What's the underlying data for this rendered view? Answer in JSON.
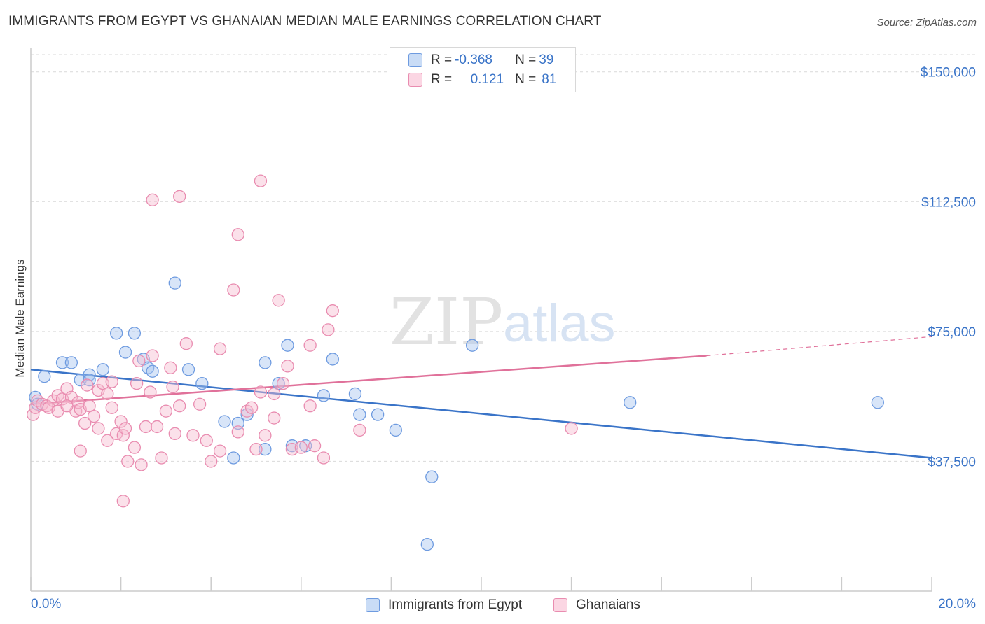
{
  "title": "IMMIGRANTS FROM EGYPT VS GHANAIAN MEDIAN MALE EARNINGS CORRELATION CHART",
  "source": "Source: ZipAtlas.com",
  "watermark": {
    "zip": "ZIP",
    "atlas": "atlas"
  },
  "colors": {
    "blue": "#3a74c8",
    "blue_fill": "#a9c6f0",
    "blue_stroke": "#6e9be0",
    "pink": "#e0719a",
    "pink_fill": "#f6bcd0",
    "pink_stroke": "#e98cb0",
    "axis_text": "#3a74c8",
    "grid": "#d9d9d9"
  },
  "legend": {
    "rows": [
      {
        "r_label": "R = ",
        "r_value": "-0.368",
        "n_label": "N = ",
        "n_value": "39"
      },
      {
        "r_label": "R = ",
        "r_value": "0.121",
        "n_label": "N = ",
        "n_value": "81"
      }
    ]
  },
  "bottom_legend": [
    "Immigrants from Egypt",
    "Ghanaians"
  ],
  "chart_data": {
    "type": "scatter",
    "title": "IMMIGRANTS FROM EGYPT VS GHANAIAN MEDIAN MALE EARNINGS CORRELATION CHART",
    "xlabel": "",
    "ylabel": "Median Male Earnings",
    "xlim": [
      0,
      20
    ],
    "ylim": [
      0,
      155000
    ],
    "x_tick_labels": [
      "0.0%",
      "20.0%"
    ],
    "y_ticks": [
      37500,
      75000,
      112500,
      150000
    ],
    "y_tick_labels": [
      "$37,500",
      "$75,000",
      "$112,500",
      "$150,000"
    ],
    "grid": true,
    "series": [
      {
        "name": "Immigrants from Egypt",
        "color": "#3a74c8",
        "r": -0.368,
        "n": 39,
        "trend": {
          "x": [
            0,
            20
          ],
          "y": [
            64000,
            38500
          ]
        },
        "points": [
          [
            0.1,
            56000
          ],
          [
            0.15,
            54000
          ],
          [
            0.3,
            62000
          ],
          [
            0.7,
            66000
          ],
          [
            0.9,
            66000
          ],
          [
            1.1,
            61000
          ],
          [
            1.3,
            62500
          ],
          [
            1.3,
            61000
          ],
          [
            1.6,
            64000
          ],
          [
            1.9,
            74500
          ],
          [
            2.3,
            74500
          ],
          [
            2.1,
            69000
          ],
          [
            2.5,
            67000
          ],
          [
            2.6,
            64500
          ],
          [
            2.7,
            63500
          ],
          [
            3.2,
            89000
          ],
          [
            3.5,
            64000
          ],
          [
            3.8,
            60000
          ],
          [
            4.3,
            49000
          ],
          [
            4.5,
            38500
          ],
          [
            4.6,
            48500
          ],
          [
            4.8,
            51000
          ],
          [
            5.2,
            41000
          ],
          [
            5.5,
            60000
          ],
          [
            5.2,
            66000
          ],
          [
            5.7,
            71000
          ],
          [
            5.8,
            42000
          ],
          [
            6.1,
            42000
          ],
          [
            6.5,
            56500
          ],
          [
            6.7,
            67000
          ],
          [
            7.2,
            57000
          ],
          [
            7.3,
            51000
          ],
          [
            7.7,
            51000
          ],
          [
            8.1,
            46500
          ],
          [
            8.9,
            33000
          ],
          [
            9.8,
            71000
          ],
          [
            13.3,
            54500
          ],
          [
            18.8,
            54500
          ],
          [
            8.8,
            13500
          ]
        ]
      },
      {
        "name": "Ghanaians",
        "color": "#e0719a",
        "r": 0.121,
        "n": 81,
        "trend": {
          "x": [
            0,
            15
          ],
          "y": [
            54000,
            68000
          ]
        },
        "trend_dashed": {
          "x": [
            15,
            20
          ],
          "y": [
            68000,
            73500
          ]
        },
        "points": [
          [
            0.05,
            51000
          ],
          [
            0.1,
            53000
          ],
          [
            0.15,
            55000
          ],
          [
            0.25,
            54000
          ],
          [
            0.35,
            53500
          ],
          [
            0.5,
            55000
          ],
          [
            0.6,
            56500
          ],
          [
            0.7,
            55500
          ],
          [
            0.8,
            58500
          ],
          [
            0.9,
            56000
          ],
          [
            1.0,
            52000
          ],
          [
            1.05,
            54500
          ],
          [
            1.1,
            52500
          ],
          [
            1.2,
            48500
          ],
          [
            1.3,
            53500
          ],
          [
            1.4,
            50500
          ],
          [
            1.5,
            47000
          ],
          [
            1.5,
            58000
          ],
          [
            1.6,
            60000
          ],
          [
            1.7,
            57000
          ],
          [
            1.8,
            53000
          ],
          [
            1.9,
            45500
          ],
          [
            2.0,
            49000
          ],
          [
            2.05,
            45000
          ],
          [
            2.15,
            37500
          ],
          [
            2.3,
            41500
          ],
          [
            2.35,
            60000
          ],
          [
            2.45,
            36500
          ],
          [
            2.55,
            47500
          ],
          [
            2.65,
            57500
          ],
          [
            2.7,
            68000
          ],
          [
            2.8,
            47500
          ],
          [
            2.9,
            38500
          ],
          [
            3.0,
            52000
          ],
          [
            3.1,
            64500
          ],
          [
            3.2,
            45500
          ],
          [
            3.3,
            53500
          ],
          [
            3.45,
            71500
          ],
          [
            3.6,
            45000
          ],
          [
            3.75,
            54000
          ],
          [
            3.9,
            43500
          ],
          [
            4.0,
            37500
          ],
          [
            4.2,
            70000
          ],
          [
            4.5,
            87000
          ],
          [
            4.6,
            46000
          ],
          [
            4.8,
            52000
          ],
          [
            5.0,
            41000
          ],
          [
            5.1,
            57500
          ],
          [
            5.2,
            45000
          ],
          [
            5.4,
            50000
          ],
          [
            5.5,
            84000
          ],
          [
            5.6,
            60000
          ],
          [
            5.7,
            65000
          ],
          [
            5.8,
            41000
          ],
          [
            6.0,
            41500
          ],
          [
            6.2,
            53500
          ],
          [
            6.3,
            42000
          ],
          [
            6.5,
            38500
          ],
          [
            6.6,
            75500
          ],
          [
            6.7,
            81000
          ],
          [
            1.1,
            40500
          ],
          [
            1.7,
            43500
          ],
          [
            2.05,
            26000
          ],
          [
            3.3,
            114000
          ],
          [
            2.7,
            113000
          ],
          [
            4.6,
            103000
          ],
          [
            5.1,
            118500
          ],
          [
            6.2,
            71000
          ],
          [
            7.3,
            46500
          ],
          [
            12.0,
            47000
          ],
          [
            0.4,
            53000
          ],
          [
            0.6,
            52000
          ],
          [
            0.8,
            53500
          ],
          [
            1.25,
            59500
          ],
          [
            1.8,
            60500
          ],
          [
            2.1,
            47000
          ],
          [
            2.4,
            66500
          ],
          [
            3.15,
            59000
          ],
          [
            4.2,
            40500
          ],
          [
            4.9,
            53000
          ],
          [
            5.4,
            57000
          ]
        ]
      }
    ]
  }
}
